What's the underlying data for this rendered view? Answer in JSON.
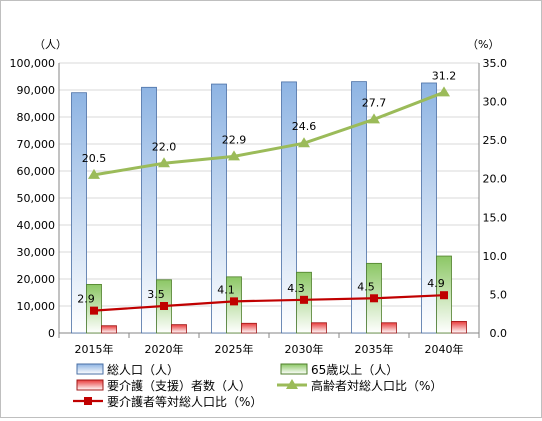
{
  "chart_data": {
    "type": "bar",
    "left_axis_unit": "（人）",
    "right_axis_unit": "（%）",
    "categories": [
      "2015年",
      "2020年",
      "2025年",
      "2030年",
      "2035年",
      "2040年"
    ],
    "left_ylim": [
      0,
      100000
    ],
    "left_ticks": [
      "0",
      "10,000",
      "20,000",
      "30,000",
      "40,000",
      "50,000",
      "60,000",
      "70,000",
      "80,000",
      "90,000",
      "100,000"
    ],
    "right_ylim": [
      0,
      35
    ],
    "right_ticks": [
      "0.0",
      "5.0",
      "10.0",
      "15.0",
      "20.0",
      "25.0",
      "30.0",
      "35.0"
    ],
    "grid": true,
    "legend_position": "bottom",
    "series": [
      {
        "name": "総人口（人）",
        "type": "bar",
        "axis": "left",
        "color": "#8eb4e3",
        "values": [
          89000,
          91000,
          92200,
          93000,
          93100,
          92600
        ]
      },
      {
        "name": "65歳以上（人）",
        "type": "bar",
        "axis": "left",
        "color": "#9bd17a",
        "values": [
          18000,
          19700,
          20800,
          22500,
          25800,
          28500
        ]
      },
      {
        "name": "要介護（支援）者数（人）",
        "type": "bar",
        "axis": "left",
        "color": "#e83a3a",
        "values": [
          2700,
          3100,
          3600,
          3800,
          3800,
          4300
        ]
      },
      {
        "name": "高齢者対総人口比（%）",
        "type": "line",
        "axis": "right",
        "color": "#9bbb59",
        "marker": "triangle",
        "values": [
          20.5,
          22.0,
          22.9,
          24.6,
          27.7,
          31.2
        ],
        "labels": [
          "20.5",
          "22.0",
          "22.9",
          "24.6",
          "27.7",
          "31.2"
        ]
      },
      {
        "name": "要介護者等対総人口比（%）",
        "type": "line",
        "axis": "right",
        "color": "#c00000",
        "marker": "square",
        "values": [
          2.9,
          3.5,
          4.1,
          4.3,
          4.5,
          4.9
        ],
        "labels": [
          "2.9",
          "3.5",
          "4.1",
          "4.3",
          "4.5",
          "4.9"
        ]
      }
    ]
  }
}
